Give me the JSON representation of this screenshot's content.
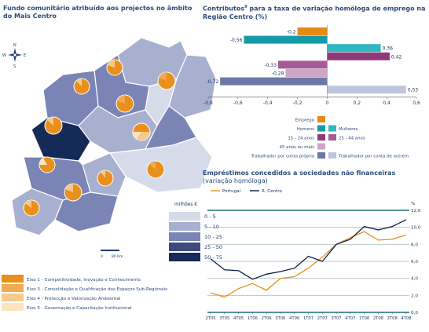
{
  "map_panel": {
    "title": "Fundo comunitário atribuído aos projectos no âmbito do Mais Centro",
    "legend_unit": "milhões €",
    "legend_classes": [
      {
        "label": "0 - 5",
        "color": "#d6dbe9"
      },
      {
        "label": "5 - 10",
        "color": "#a8b0d0"
      },
      {
        "label": "10 - 25",
        "color": "#7a84b5"
      },
      {
        "label": "25 - 50",
        "color": "#3c4a7e"
      },
      {
        "label": "50 - 75",
        "color": "#152a56"
      }
    ],
    "scale_labels": [
      "0",
      "80 Km"
    ],
    "compass": {
      "n": "N",
      "s": "S",
      "e": "E",
      "w": "W"
    },
    "eixos": [
      {
        "label": "Eixo 1 - Competitividade, Inovação e Conhecimento",
        "color": "#e8901b"
      },
      {
        "label": "Eixo 3 - Consolidação e Qualificação dos Espaços Sub-Regionais",
        "color": "#f0aa50"
      },
      {
        "label": "Eixo 4 - Protecção e Valorização Ambiental",
        "color": "#f6c98a"
      },
      {
        "label": "Eixo 5 - Governação e Capacitação Institucional",
        "color": "#fbe4c2"
      }
    ]
  },
  "contrib_chart": {
    "title": "Contributos",
    "title_sup": "9",
    "title_rest": " para a taxa de variação homóloga de emprego na Região Centro (%)",
    "legend": [
      {
        "label": "Emprego",
        "color": "#e58a14"
      },
      {
        "label": "Homens",
        "color": "#179aa8"
      },
      {
        "label": "Mulheres",
        "color": "#2fb7c2"
      },
      {
        "label": "15 - 24 anos",
        "color": "#8e3a7a"
      },
      {
        "label": "25 - 44 anos",
        "color": "#a55b95"
      },
      {
        "label": "45 anos ou mais",
        "color": "#cfa6c8"
      },
      {
        "label": "Trabalhador por conta própria",
        "color": "#6d78a6"
      },
      {
        "label": "Trabalhador por conta de outrem",
        "color": "#bfc5de"
      }
    ]
  },
  "loans_chart": {
    "title": "Empréstimos concedidos a sociedades não financeiras",
    "subtitle": "(variação homóloga)",
    "unit": "%"
  },
  "chart_data": [
    {
      "type": "bar",
      "orientation": "horizontal",
      "title": "Contributos9 para a taxa de variação homóloga de emprego na Região Centro (%)",
      "bars": [
        {
          "name": "Emprego",
          "value": -0.2,
          "label": "-0,2",
          "color": "#e58a14"
        },
        {
          "name": "Homens",
          "value": -0.56,
          "label": "-0,56",
          "color": "#179aa8"
        },
        {
          "name": "Mulheres",
          "value": 0.36,
          "label": "0,36",
          "color": "#2fb7c2"
        },
        {
          "name": "15 - 24 anos",
          "value": 0.42,
          "label": "0,42",
          "color": "#8e3a7a"
        },
        {
          "name": "25 - 44 anos",
          "value": -0.33,
          "label": "-0,33",
          "color": "#a55b95"
        },
        {
          "name": "45 anos ou mais",
          "value": -0.28,
          "label": "-0,28",
          "color": "#cfa6c8"
        },
        {
          "name": "Trabalhador por conta própria",
          "value": -0.72,
          "label": "-0,72",
          "color": "#6d78a6"
        },
        {
          "name": "Trabalhador por conta de outrem",
          "value": 0.53,
          "label": "0,53",
          "color": "#bfc5de"
        }
      ],
      "xlim": [
        -0.8,
        0.6
      ],
      "xticks": [
        -0.8,
        -0.6,
        -0.4,
        -0.2,
        0,
        0.2,
        0.4,
        0.6
      ],
      "xtick_labels": [
        "-0,8",
        "-0,6",
        "-0,4",
        "-0,2",
        "0",
        "0,2",
        "0,4",
        "0,6"
      ]
    },
    {
      "type": "line",
      "title": "Empréstimos concedidos a sociedades não financeiras",
      "subtitle": "(variação homóloga)",
      "categories": [
        "2T05",
        "3T05",
        "4T05",
        "1T06",
        "2T06",
        "3T06",
        "4T06",
        "1T07",
        "2T07",
        "3T07",
        "4T07",
        "1T08",
        "2T08",
        "3T08",
        "4T08"
      ],
      "series": [
        {
          "name": "Portugal",
          "color": "#e8901b",
          "values": [
            2.3,
            1.8,
            2.8,
            3.4,
            2.6,
            4.0,
            4.2,
            5.2,
            6.5,
            8.0,
            8.8,
            9.5,
            8.5,
            8.6,
            9.1
          ]
        },
        {
          "name": "R. Centro",
          "color": "#0d1d45",
          "values": [
            6.3,
            5.0,
            4.9,
            3.9,
            4.5,
            4.8,
            5.2,
            6.6,
            6.0,
            8.0,
            8.6,
            10.1,
            9.7,
            10.1,
            10.9
          ]
        }
      ],
      "ylim": [
        0,
        12
      ],
      "yticks": [
        0,
        2,
        4,
        6,
        8,
        10,
        12
      ],
      "ytick_labels": [
        "0,0",
        "2,0",
        "4,0",
        "6,0",
        "8,0",
        "10,0",
        "12,0"
      ],
      "ylabel": "%",
      "grid": true,
      "legend_position": "top-left"
    }
  ]
}
